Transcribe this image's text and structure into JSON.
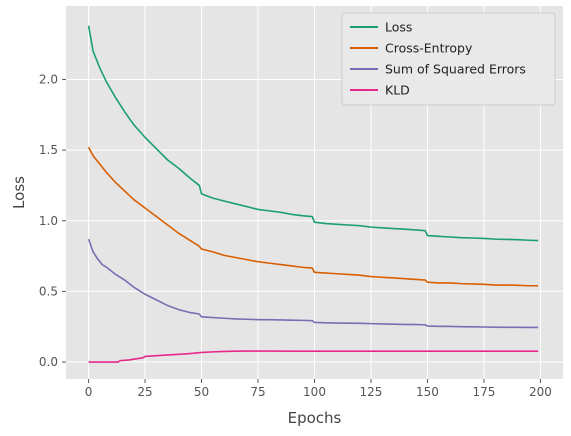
{
  "chart_data": {
    "type": "line",
    "xlabel": "Epochs",
    "ylabel": "Loss",
    "xlim": [
      -10,
      210
    ],
    "ylim": [
      -0.12,
      2.52
    ],
    "x_ticks": [
      0,
      25,
      50,
      75,
      100,
      125,
      150,
      175,
      200
    ],
    "y_ticks": [
      0.0,
      0.5,
      1.0,
      1.5,
      2.0
    ],
    "x_tick_labels": [
      "0",
      "25",
      "50",
      "75",
      "100",
      "125",
      "150",
      "175",
      "200"
    ],
    "y_tick_labels": [
      "0.0",
      "0.5",
      "1.0",
      "1.5",
      "2.0"
    ],
    "grid": true,
    "legend_position": "top-right",
    "series": [
      {
        "name": "Loss",
        "color": "#1b9e77",
        "points": [
          [
            0,
            2.38
          ],
          [
            2,
            2.2
          ],
          [
            5,
            2.08
          ],
          [
            8,
            1.98
          ],
          [
            12,
            1.87
          ],
          [
            16,
            1.77
          ],
          [
            20,
            1.68
          ],
          [
            25,
            1.59
          ],
          [
            30,
            1.51
          ],
          [
            35,
            1.43
          ],
          [
            40,
            1.37
          ],
          [
            45,
            1.3
          ],
          [
            49,
            1.25
          ],
          [
            50,
            1.19
          ],
          [
            55,
            1.16
          ],
          [
            60,
            1.14
          ],
          [
            65,
            1.12
          ],
          [
            70,
            1.1
          ],
          [
            75,
            1.08
          ],
          [
            80,
            1.07
          ],
          [
            85,
            1.06
          ],
          [
            90,
            1.045
          ],
          [
            95,
            1.035
          ],
          [
            99,
            1.03
          ],
          [
            100,
            0.99
          ],
          [
            105,
            0.98
          ],
          [
            110,
            0.975
          ],
          [
            115,
            0.97
          ],
          [
            120,
            0.965
          ],
          [
            125,
            0.955
          ],
          [
            130,
            0.95
          ],
          [
            135,
            0.945
          ],
          [
            140,
            0.94
          ],
          [
            145,
            0.935
          ],
          [
            149,
            0.93
          ],
          [
            150,
            0.895
          ],
          [
            155,
            0.89
          ],
          [
            160,
            0.885
          ],
          [
            165,
            0.88
          ],
          [
            170,
            0.878
          ],
          [
            175,
            0.875
          ],
          [
            180,
            0.87
          ],
          [
            185,
            0.868
          ],
          [
            190,
            0.866
          ],
          [
            195,
            0.862
          ],
          [
            199,
            0.86
          ]
        ]
      },
      {
        "name": "Cross-Entropy",
        "color": "#d95f02",
        "points": [
          [
            0,
            1.52
          ],
          [
            2,
            1.46
          ],
          [
            5,
            1.4
          ],
          [
            8,
            1.34
          ],
          [
            12,
            1.27
          ],
          [
            16,
            1.21
          ],
          [
            20,
            1.15
          ],
          [
            25,
            1.09
          ],
          [
            30,
            1.03
          ],
          [
            35,
            0.97
          ],
          [
            40,
            0.91
          ],
          [
            45,
            0.86
          ],
          [
            49,
            0.82
          ],
          [
            50,
            0.8
          ],
          [
            55,
            0.78
          ],
          [
            60,
            0.755
          ],
          [
            65,
            0.74
          ],
          [
            70,
            0.725
          ],
          [
            75,
            0.71
          ],
          [
            80,
            0.7
          ],
          [
            85,
            0.69
          ],
          [
            90,
            0.68
          ],
          [
            95,
            0.67
          ],
          [
            99,
            0.665
          ],
          [
            100,
            0.635
          ],
          [
            105,
            0.63
          ],
          [
            110,
            0.625
          ],
          [
            115,
            0.62
          ],
          [
            120,
            0.615
          ],
          [
            125,
            0.605
          ],
          [
            130,
            0.6
          ],
          [
            135,
            0.595
          ],
          [
            140,
            0.59
          ],
          [
            145,
            0.585
          ],
          [
            149,
            0.58
          ],
          [
            150,
            0.565
          ],
          [
            155,
            0.56
          ],
          [
            160,
            0.56
          ],
          [
            165,
            0.555
          ],
          [
            170,
            0.553
          ],
          [
            175,
            0.55
          ],
          [
            180,
            0.545
          ],
          [
            185,
            0.545
          ],
          [
            190,
            0.543
          ],
          [
            195,
            0.54
          ],
          [
            199,
            0.54
          ]
        ]
      },
      {
        "name": "Sum of Squared Errors",
        "color": "#7570b3",
        "points": [
          [
            0,
            0.87
          ],
          [
            2,
            0.78
          ],
          [
            4,
            0.73
          ],
          [
            6,
            0.69
          ],
          [
            8,
            0.67
          ],
          [
            12,
            0.62
          ],
          [
            16,
            0.58
          ],
          [
            20,
            0.53
          ],
          [
            25,
            0.48
          ],
          [
            30,
            0.44
          ],
          [
            35,
            0.4
          ],
          [
            40,
            0.37
          ],
          [
            45,
            0.35
          ],
          [
            49,
            0.34
          ],
          [
            50,
            0.32
          ],
          [
            55,
            0.315
          ],
          [
            60,
            0.31
          ],
          [
            65,
            0.305
          ],
          [
            70,
            0.303
          ],
          [
            75,
            0.3
          ],
          [
            80,
            0.3
          ],
          [
            85,
            0.298
          ],
          [
            90,
            0.296
          ],
          [
            95,
            0.295
          ],
          [
            99,
            0.293
          ],
          [
            100,
            0.28
          ],
          [
            105,
            0.278
          ],
          [
            110,
            0.276
          ],
          [
            115,
            0.275
          ],
          [
            120,
            0.274
          ],
          [
            125,
            0.272
          ],
          [
            130,
            0.27
          ],
          [
            135,
            0.268
          ],
          [
            140,
            0.266
          ],
          [
            145,
            0.265
          ],
          [
            149,
            0.264
          ],
          [
            150,
            0.255
          ],
          [
            155,
            0.253
          ],
          [
            160,
            0.252
          ],
          [
            165,
            0.25
          ],
          [
            170,
            0.249
          ],
          [
            175,
            0.248
          ],
          [
            180,
            0.247
          ],
          [
            185,
            0.246
          ],
          [
            190,
            0.246
          ],
          [
            195,
            0.245
          ],
          [
            199,
            0.245
          ]
        ]
      },
      {
        "name": "KLD",
        "color": "#e7298a",
        "points": [
          [
            0,
            0.0
          ],
          [
            5,
            0.0
          ],
          [
            10,
            0.0
          ],
          [
            13,
            0.0
          ],
          [
            14,
            0.01
          ],
          [
            18,
            0.015
          ],
          [
            20,
            0.02
          ],
          [
            24,
            0.03
          ],
          [
            25,
            0.04
          ],
          [
            30,
            0.045
          ],
          [
            35,
            0.05
          ],
          [
            40,
            0.055
          ],
          [
            45,
            0.06
          ],
          [
            50,
            0.068
          ],
          [
            55,
            0.072
          ],
          [
            60,
            0.075
          ],
          [
            65,
            0.077
          ],
          [
            70,
            0.078
          ],
          [
            75,
            0.078
          ],
          [
            80,
            0.078
          ],
          [
            90,
            0.077
          ],
          [
            100,
            0.077
          ],
          [
            125,
            0.077
          ],
          [
            150,
            0.077
          ],
          [
            175,
            0.077
          ],
          [
            199,
            0.077
          ]
        ]
      }
    ]
  }
}
